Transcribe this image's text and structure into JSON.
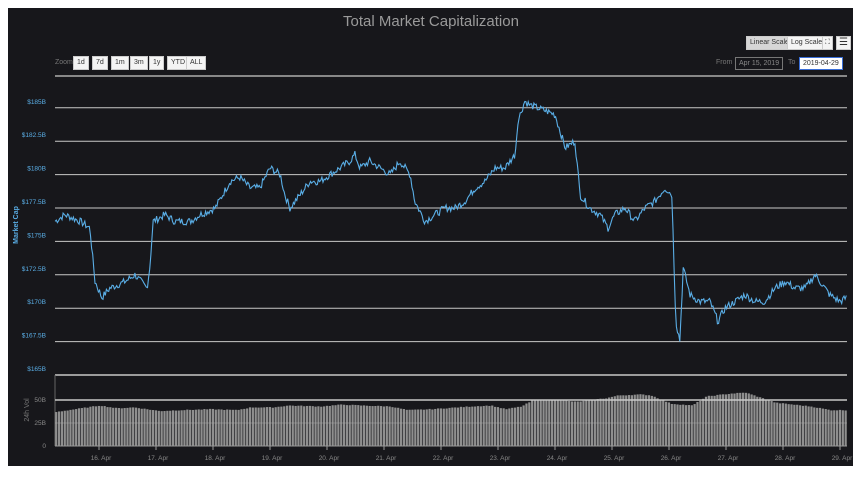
{
  "title": "Total Market Capitalization",
  "toolbar": {
    "linear_label": "Linear Scale",
    "log_label": "Log Scale",
    "fullscreen_icon": "expand-icon",
    "menu_icon": "hamburger-icon"
  },
  "zoom": {
    "label": "Zoom",
    "buttons": [
      "1d",
      "7d",
      "1m",
      "3m",
      "1y",
      "YTD",
      "ALL"
    ]
  },
  "range": {
    "from_label": "From",
    "from_value": "Apr 15, 2019",
    "to_label": "To",
    "to_value": "2019-04-29"
  },
  "colors": {
    "line": "#5aaee6",
    "axis_label": "#5aaee6",
    "volume": "#8f8f8f",
    "grid": "#c8c8c8"
  },
  "chart_data": [
    {
      "type": "line",
      "title": "Total Market Capitalization",
      "ylabel": "Market Cap",
      "ylim": [
        165,
        186.5
      ],
      "yticks": [
        {
          "v": 165,
          "label": "$165B"
        },
        {
          "v": 167.5,
          "label": "$167.5B"
        },
        {
          "v": 170,
          "label": "$170B"
        },
        {
          "v": 172.5,
          "label": "$172.5B"
        },
        {
          "v": 175,
          "label": "$175B"
        },
        {
          "v": 177.5,
          "label": "$177.5B"
        },
        {
          "v": 180,
          "label": "$180B"
        },
        {
          "v": 182.5,
          "label": "$182.5B"
        },
        {
          "v": 185,
          "label": "$185B"
        }
      ],
      "x_unit": "days since Apr 15, 2019",
      "x": [
        0.23,
        0.4,
        0.67,
        0.84,
        0.93,
        1.05,
        1.19,
        1.46,
        1.63,
        1.84,
        1.89,
        1.95,
        2.16,
        2.33,
        2.6,
        2.77,
        3.04,
        3.3,
        3.47,
        3.65,
        3.82,
        4.0,
        4.18,
        4.26,
        4.35,
        4.53,
        4.7,
        4.88,
        5.05,
        5.23,
        5.4,
        5.49,
        5.58,
        5.75,
        5.93,
        6.11,
        6.28,
        6.46,
        6.54,
        6.72,
        6.89,
        7.07,
        7.25,
        7.42,
        7.6,
        7.77,
        7.95,
        8.12,
        8.3,
        8.35,
        8.47,
        8.56,
        8.82,
        9.0,
        9.18,
        9.35,
        9.44,
        9.61,
        9.79,
        9.93,
        10.05,
        10.23,
        10.4,
        10.58,
        10.75,
        10.93,
        11.05,
        11.12,
        11.19,
        11.25,
        11.37,
        11.54,
        11.72,
        11.86,
        11.98,
        12.16,
        12.33,
        12.51,
        12.68,
        12.86,
        13.04,
        13.21,
        13.39,
        13.56,
        13.65,
        13.82,
        14.0,
        14.12
      ],
      "values": [
        176.5,
        177,
        176.5,
        176,
        172,
        170.8,
        171.5,
        172,
        172.5,
        171.5,
        173,
        176.5,
        177,
        176.5,
        176.5,
        177,
        177.5,
        179.5,
        179.8,
        179,
        179,
        180.5,
        180,
        178.5,
        177.5,
        178.5,
        179.5,
        179.5,
        180,
        180.5,
        181,
        181.5,
        180.5,
        181,
        180.5,
        180,
        181,
        180,
        178,
        176.5,
        177,
        177.5,
        177.5,
        178,
        179,
        179.5,
        180.5,
        180.5,
        181.5,
        184,
        185.5,
        185.2,
        184.8,
        184.5,
        182,
        182.5,
        178.5,
        177.5,
        177,
        176,
        177,
        177.5,
        176.5,
        177.5,
        178,
        179,
        178.5,
        169,
        167.6,
        173,
        171,
        170.5,
        170.5,
        169,
        170,
        170.5,
        171,
        170.5,
        170.5,
        171.5,
        172,
        171.5,
        171.5,
        172.5,
        172,
        171,
        170.5,
        170.8
      ]
    },
    {
      "type": "bar",
      "ylabel": "24h Vol",
      "ylim": [
        0,
        52
      ],
      "yticks": [
        {
          "v": 0,
          "label": "0"
        },
        {
          "v": 25,
          "label": "25B"
        },
        {
          "v": 50,
          "label": "50B"
        }
      ],
      "xticks": [
        "16. Apr",
        "17. Apr",
        "18. Apr",
        "19. Apr",
        "20. Apr",
        "21. Apr",
        "22. Apr",
        "23. Apr",
        "24. Apr",
        "25. Apr",
        "26. Apr",
        "27. Apr",
        "28. Apr",
        "29. Apr"
      ],
      "x": [
        0.23,
        1.0,
        1.3,
        1.6,
        2.05,
        2.4,
        2.95,
        3.4,
        3.65,
        4.05,
        4.3,
        4.88,
        5.25,
        5.6,
        6.1,
        6.4,
        6.81,
        7.51,
        7.86,
        8.12,
        8.4,
        8.6,
        9.09,
        9.35,
        9.88,
        10.1,
        10.49,
        10.67,
        11.02,
        11.39,
        11.65,
        12.07,
        12.33,
        12.86,
        13.47,
        13.82,
        14.12
      ],
      "values": [
        37,
        44,
        41,
        42,
        38,
        39,
        40,
        39,
        42,
        42,
        44,
        43,
        45,
        44,
        43,
        39,
        40,
        43,
        44,
        40,
        43,
        50,
        50,
        48,
        52,
        55,
        56,
        55,
        46,
        44,
        54,
        57,
        58,
        47,
        43,
        39,
        39
      ]
    }
  ]
}
